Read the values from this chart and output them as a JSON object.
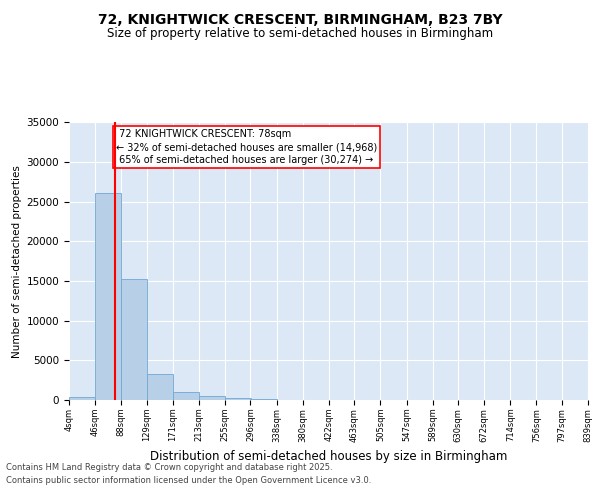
{
  "title_line1": "72, KNIGHTWICK CRESCENT, BIRMINGHAM, B23 7BY",
  "title_line2": "Size of property relative to semi-detached houses in Birmingham",
  "xlabel": "Distribution of semi-detached houses by size in Birmingham",
  "ylabel": "Number of semi-detached properties",
  "footer_line1": "Contains HM Land Registry data © Crown copyright and database right 2025.",
  "footer_line2": "Contains public sector information licensed under the Open Government Licence v3.0.",
  "property_label": "72 KNIGHTWICK CRESCENT: 78sqm",
  "pct_smaller": 32,
  "pct_larger": 65,
  "n_smaller": 14968,
  "n_larger": 30274,
  "bar_left_edges": [
    4,
    46,
    88,
    129,
    171,
    213,
    255,
    296,
    338,
    380,
    422,
    463,
    505,
    547,
    589,
    630,
    672,
    714,
    756,
    797
  ],
  "bar_heights": [
    350,
    26100,
    15200,
    3300,
    1000,
    500,
    200,
    80,
    40,
    15,
    8,
    4,
    2,
    1,
    1,
    0,
    0,
    0,
    0,
    0
  ],
  "bin_width": 42,
  "tick_labels": [
    "4sqm",
    "46sqm",
    "88sqm",
    "129sqm",
    "171sqm",
    "213sqm",
    "255sqm",
    "296sqm",
    "338sqm",
    "380sqm",
    "422sqm",
    "463sqm",
    "505sqm",
    "547sqm",
    "589sqm",
    "630sqm",
    "672sqm",
    "714sqm",
    "756sqm",
    "797sqm",
    "839sqm"
  ],
  "bar_color": "#b8cfe8",
  "bar_edge_color": "#6fa8d4",
  "vline_color": "red",
  "vline_x": 78,
  "ylim": [
    0,
    35000
  ],
  "yticks": [
    0,
    5000,
    10000,
    15000,
    20000,
    25000,
    30000,
    35000
  ],
  "bg_color": "#dce8f5",
  "grid_color": "white",
  "fig_bg_color": "white",
  "title_fontsize": 10,
  "subtitle_fontsize": 8.5,
  "ylabel_fontsize": 7.5,
  "xlabel_fontsize": 8.5,
  "ytick_fontsize": 7.5,
  "xtick_fontsize": 6,
  "footer_fontsize": 6,
  "annot_fontsize": 7
}
